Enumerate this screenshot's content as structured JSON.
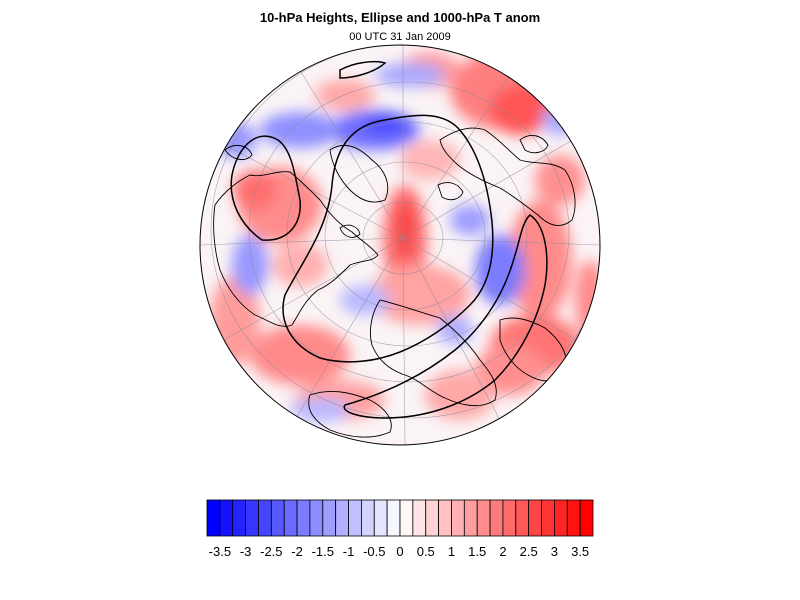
{
  "title": "10-hPa Heights, Ellipse and 1000-hPa T anom",
  "subtitle": "00 UTC 31 Jan 2009",
  "colorbar": {
    "levels": [
      -3.75,
      -3.5,
      -3.25,
      -3,
      -2.75,
      -2.5,
      -2.25,
      -2,
      -1.75,
      -1.5,
      -1.25,
      -1,
      -0.75,
      -0.5,
      -0.25,
      0,
      0.25,
      0.5,
      0.75,
      1,
      1.25,
      1.5,
      1.75,
      2,
      2.25,
      2.5,
      2.75,
      3,
      3.25,
      3.5,
      3.75
    ],
    "tick_labels": [
      "-3.5",
      "-3",
      "-2.5",
      "-2",
      "-1.5",
      "-1",
      "-0.5",
      "0",
      "0.5",
      "1",
      "1.5",
      "2",
      "2.5",
      "3",
      "3.5"
    ],
    "neg_color": "#0000ff",
    "pos_color": "#ff0000"
  },
  "map": {
    "projection": "orthographic-polar",
    "coastline_color": "#000000",
    "grid_color": "#8a8a9a"
  }
}
